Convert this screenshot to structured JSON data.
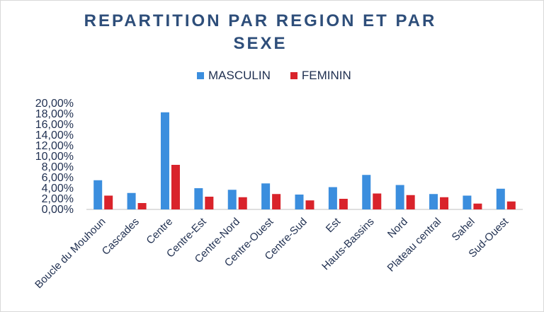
{
  "chart_data": {
    "type": "bar",
    "title_line1": "REPARTITION PAR REGION ET PAR",
    "title_line2": "SEXE",
    "categories": [
      "Boucle du Mouhoun",
      "Cascades",
      "Centre",
      "Centre-Est",
      "Centre-Nord",
      "Centre-Ouest",
      "Centre-Sud",
      "Est",
      "Hauts-Bassins",
      "Nord",
      "Plateau central",
      "Sahel",
      "Sud-Ouest"
    ],
    "series": [
      {
        "name": "MASCULIN",
        "color": "#3b8ede",
        "values": [
          5.5,
          3.1,
          18.3,
          4.0,
          3.7,
          4.9,
          2.8,
          4.2,
          6.5,
          4.6,
          2.9,
          2.6,
          3.9
        ]
      },
      {
        "name": "FEMININ",
        "color": "#d9232b",
        "values": [
          2.6,
          1.2,
          8.4,
          2.4,
          2.3,
          2.9,
          1.7,
          2.0,
          3.0,
          2.7,
          2.3,
          1.1,
          1.5
        ]
      }
    ],
    "y_ticks": [
      "0,00%",
      "2,00%",
      "4,00%",
      "6,00%",
      "8,00%",
      "10,00%",
      "12,00%",
      "14,00%",
      "16,00%",
      "18,00%",
      "20,00%"
    ],
    "ylim": [
      0,
      20
    ],
    "grid": false,
    "legend_position": "top"
  }
}
